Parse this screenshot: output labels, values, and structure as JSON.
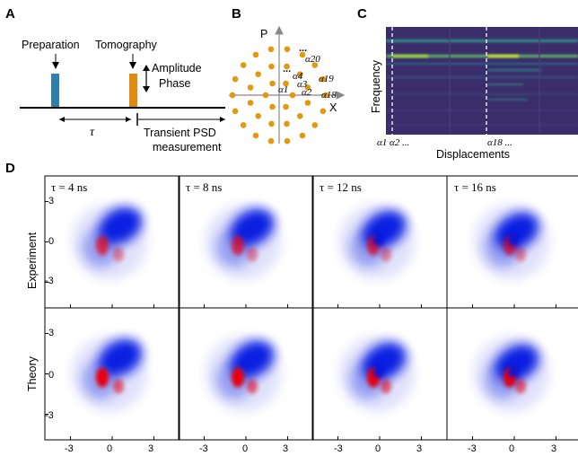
{
  "panels": {
    "a": {
      "letter": "A",
      "preparation": "Preparation",
      "tomography": "Tomography",
      "amplitude": "Amplitude",
      "phase": "Phase",
      "tau": "τ",
      "transient1": "Transient PSD",
      "transient2": "measurement",
      "colors": {
        "prep": "#2f7fae",
        "tomo": "#e08a12"
      }
    },
    "b": {
      "letter": "B",
      "p_axis": "P",
      "x_axis": "X",
      "alphas": {
        "a1": "α1",
        "a2": "α2",
        "a3": "α3",
        "a4": "α4",
        "a18": "α18",
        "a19": "α19",
        "a20": "α20"
      },
      "dots": "...",
      "dot_color": "#e3980f"
    },
    "c": {
      "letter": "C",
      "ylabel": "Frequency",
      "xlabel": "Displacements",
      "tick_a1": "α1 α2 ...",
      "tick_a18": "α18 ...",
      "bg_color": "#3b2d6a"
    },
    "d": {
      "letter": "D",
      "row_labels": [
        "Experiment",
        "Theory"
      ],
      "col_titles": [
        "τ = 4 ns",
        "τ = 8 ns",
        "τ = 12 ns",
        "τ = 16 ns"
      ],
      "yticks": [
        "3",
        "0",
        "-3"
      ],
      "xticks": [
        "-3",
        "0",
        "3"
      ],
      "colors": {
        "positive": "#0018e0",
        "negative": "#e8000a"
      }
    }
  }
}
